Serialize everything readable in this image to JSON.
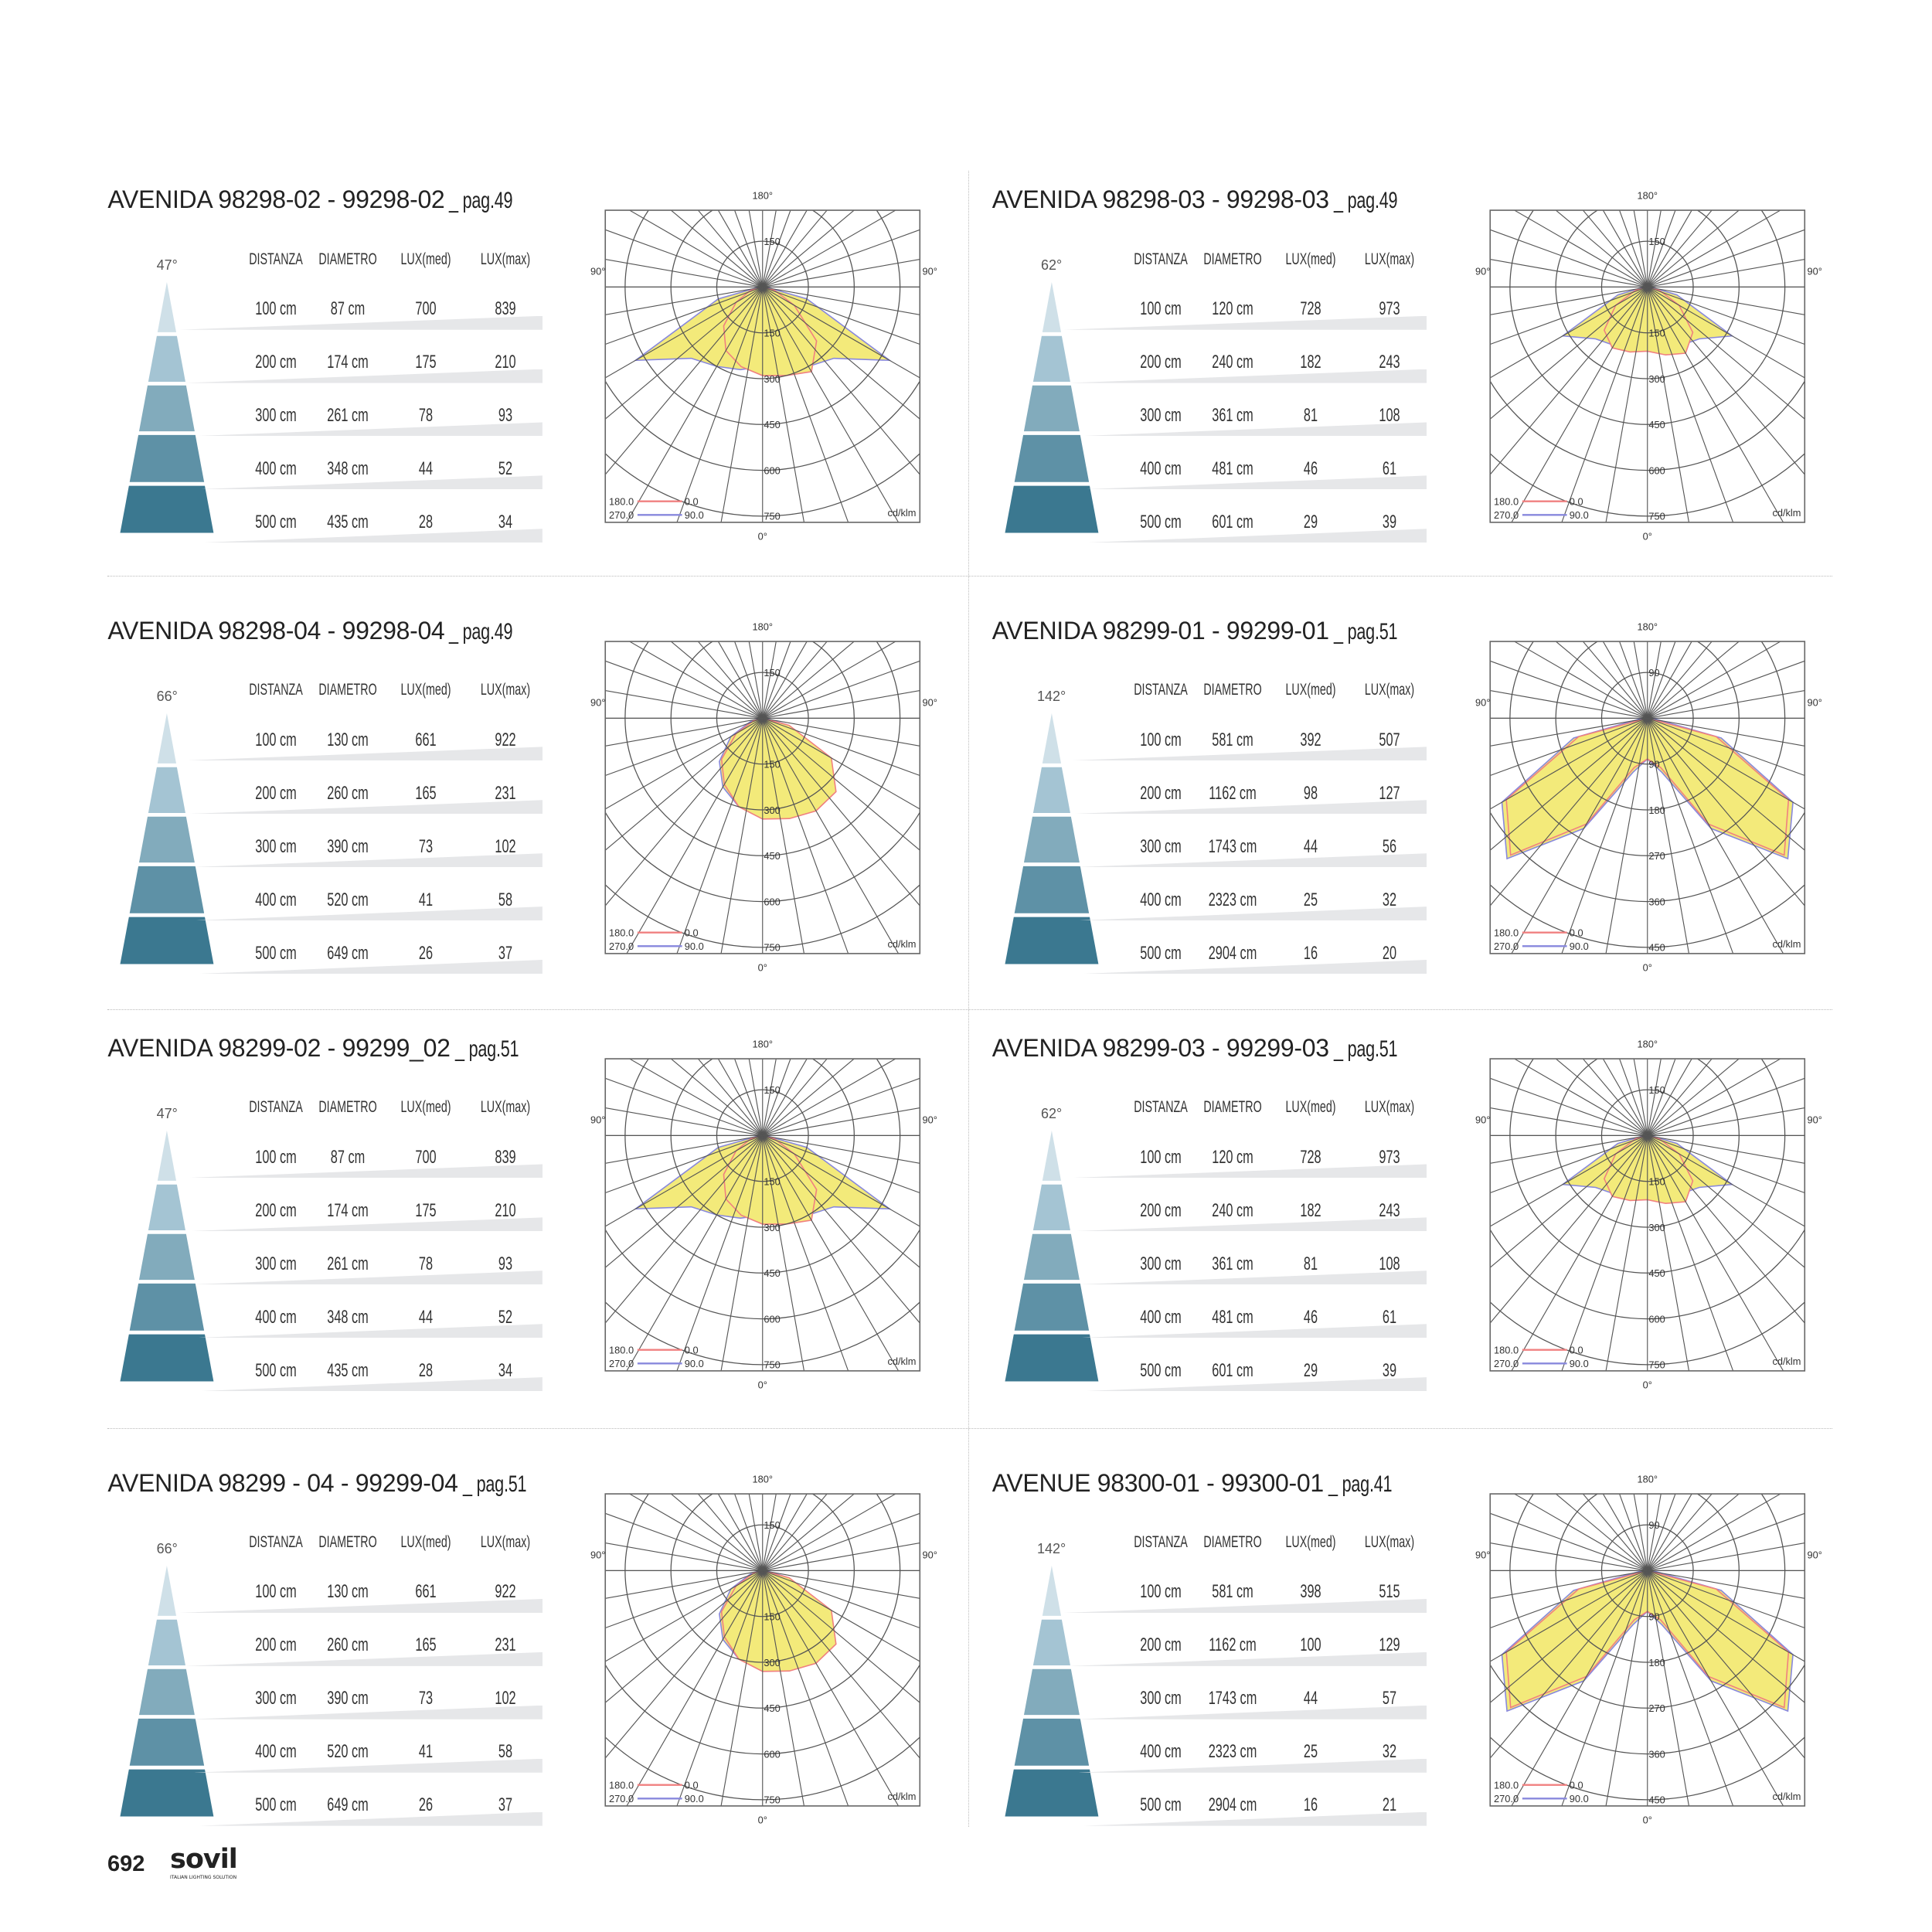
{
  "page_number": "692",
  "logo": {
    "brand": "sovil",
    "tagline": "ITALIAN LIGHTING SOLUTION"
  },
  "table_headers": [
    "DISTANZA",
    "DIAMETRO",
    "LUX(med)",
    "LUX(max)"
  ],
  "chart_labels": {
    "top": "180°",
    "left": "90°",
    "right": "90°",
    "bottom": "0°",
    "unit": "cd/klm",
    "legend": [
      {
        "a": "180.0",
        "b": "0.0",
        "color": "#f08080"
      },
      {
        "a": "270.0",
        "b": "90.0",
        "color": "#8888dd"
      }
    ]
  },
  "colors": {
    "fill": "#f3ea7a",
    "cone": [
      "#cfe0e8",
      "#a4c4d3",
      "#82abbc",
      "#5e91a6",
      "#3b7890"
    ]
  },
  "panels": [
    {
      "title": "AVENIDA 98298-02 - 99298-02",
      "page": "_ pag.49",
      "angle": "47°",
      "rows": [
        [
          "100 cm",
          "87 cm",
          "700",
          "839"
        ],
        [
          "200 cm",
          "174 cm",
          "175",
          "210"
        ],
        [
          "300 cm",
          "261 cm",
          "78",
          "93"
        ],
        [
          "400 cm",
          "348 cm",
          "44",
          "52"
        ],
        [
          "500 cm",
          "435 cm",
          "28",
          "34"
        ]
      ],
      "chart_data": {
        "type": "polar",
        "rings": [
          "150",
          "300",
          "450",
          "600",
          "750"
        ],
        "ring_step": 150,
        "angles_deg": [
          -90,
          -75,
          -60,
          -45,
          -30,
          -15,
          0,
          15,
          30,
          45,
          60,
          75,
          90
        ],
        "series": [
          {
            "name": "C90-270",
            "values": [
              10,
              150,
              480,
              330,
              300,
              280,
              260,
              280,
              300,
              330,
              480,
              150,
              10
            ]
          },
          {
            "name": "C0-180",
            "values": [
              0,
              40,
              100,
              180,
              240,
              270,
              290,
              300,
              320,
              250,
              120,
              40,
              0
            ]
          }
        ]
      }
    },
    {
      "title": "AVENIDA 98298-03 - 99298-03",
      "page": "_ pag.49",
      "angle": "62°",
      "rows": [
        [
          "100 cm",
          "120 cm",
          "728",
          "973"
        ],
        [
          "200 cm",
          "240 cm",
          "182",
          "243"
        ],
        [
          "300 cm",
          "361 cm",
          "81",
          "108"
        ],
        [
          "400 cm",
          "481 cm",
          "46",
          "61"
        ],
        [
          "500 cm",
          "601 cm",
          "29",
          "39"
        ]
      ],
      "chart_data": {
        "type": "polar",
        "rings": [
          "150",
          "300",
          "450",
          "600",
          "750"
        ],
        "ring_step": 150,
        "angles_deg": [
          -90,
          -75,
          -60,
          -45,
          -30,
          -15,
          0,
          15,
          30,
          45,
          60,
          75,
          90
        ],
        "series": [
          {
            "name": "C90-270",
            "values": [
              10,
              100,
              320,
              240,
              220,
              210,
              200,
              210,
              220,
              240,
              320,
              100,
              10
            ]
          },
          {
            "name": "C0-180",
            "values": [
              0,
              40,
              120,
              200,
              230,
              220,
              210,
              230,
              250,
              210,
              120,
              40,
              0
            ]
          }
        ]
      }
    },
    {
      "title": "AVENIDA 98298-04 - 99298-04",
      "page": "_ pag.49",
      "angle": "66°",
      "rows": [
        [
          "100 cm",
          "130 cm",
          "661",
          "922"
        ],
        [
          "200 cm",
          "260 cm",
          "165",
          "231"
        ],
        [
          "300 cm",
          "390 cm",
          "73",
          "102"
        ],
        [
          "400 cm",
          "520 cm",
          "41",
          "58"
        ],
        [
          "500 cm",
          "649 cm",
          "26",
          "37"
        ]
      ],
      "chart_data": {
        "type": "polar",
        "rings": [
          "150",
          "300",
          "450",
          "600",
          "750"
        ],
        "ring_step": 150,
        "angles_deg": [
          -90,
          -75,
          -60,
          -45,
          -30,
          -15,
          0,
          15,
          30,
          45,
          60,
          75,
          90
        ],
        "series": [
          {
            "name": "C90-270",
            "values": [
              10,
              40,
              120,
              200,
              260,
              300,
              320,
              330,
              340,
              330,
              250,
              80,
              10
            ]
          },
          {
            "name": "C0-180",
            "values": [
              0,
              30,
              100,
              190,
              250,
              300,
              330,
              340,
              350,
              340,
              260,
              90,
              0
            ]
          }
        ]
      }
    },
    {
      "title": "AVENIDA 98299-01 - 99299-01",
      "page": "_ pag.51",
      "angle": "142°",
      "rows": [
        [
          "100 cm",
          "581 cm",
          "392",
          "507"
        ],
        [
          "200 cm",
          "1162 cm",
          "98",
          "127"
        ],
        [
          "300 cm",
          "1743 cm",
          "44",
          "56"
        ],
        [
          "400 cm",
          "2323 cm",
          "25",
          "32"
        ],
        [
          "500 cm",
          "2904 cm",
          "16",
          "20"
        ]
      ],
      "chart_data": {
        "type": "polar",
        "rings": [
          "90",
          "180",
          "270",
          "360",
          "450"
        ],
        "ring_step": 90,
        "angles_deg": [
          -90,
          -75,
          -60,
          -45,
          -30,
          -15,
          0,
          15,
          30,
          45,
          60,
          75,
          90
        ],
        "series": [
          {
            "name": "C90-270",
            "values": [
              10,
              150,
              330,
              390,
              250,
              110,
              80,
              110,
              250,
              390,
              330,
              150,
              10
            ]
          },
          {
            "name": "C0-180",
            "values": [
              0,
              140,
              320,
              380,
              240,
              100,
              80,
              100,
              240,
              380,
              320,
              140,
              0
            ]
          }
        ]
      }
    },
    {
      "title": "AVENIDA 98299-02 - 99299_02",
      "page": "_ pag.51",
      "angle": "47°",
      "rows": [
        [
          "100 cm",
          "87 cm",
          "700",
          "839"
        ],
        [
          "200 cm",
          "174 cm",
          "175",
          "210"
        ],
        [
          "300 cm",
          "261 cm",
          "78",
          "93"
        ],
        [
          "400 cm",
          "348 cm",
          "44",
          "52"
        ],
        [
          "500 cm",
          "435 cm",
          "28",
          "34"
        ]
      ],
      "chart_data": {
        "type": "polar",
        "rings": [
          "150",
          "300",
          "450",
          "600",
          "750"
        ],
        "ring_step": 150,
        "angles_deg": [
          -90,
          -75,
          -60,
          -45,
          -30,
          -15,
          0,
          15,
          30,
          45,
          60,
          75,
          90
        ],
        "series": [
          {
            "name": "C90-270",
            "values": [
              10,
              150,
              480,
              330,
              300,
              280,
              260,
              280,
              300,
              330,
              480,
              150,
              10
            ]
          },
          {
            "name": "C0-180",
            "values": [
              0,
              40,
              100,
              180,
              240,
              270,
              290,
              300,
              320,
              250,
              120,
              40,
              0
            ]
          }
        ]
      }
    },
    {
      "title": "AVENIDA 98299-03 - 99299-03",
      "page": "_ pag.51",
      "angle": "62°",
      "rows": [
        [
          "100 cm",
          "120 cm",
          "728",
          "973"
        ],
        [
          "200 cm",
          "240 cm",
          "182",
          "243"
        ],
        [
          "300 cm",
          "361 cm",
          "81",
          "108"
        ],
        [
          "400 cm",
          "481 cm",
          "46",
          "61"
        ],
        [
          "500 cm",
          "601 cm",
          "29",
          "39"
        ]
      ],
      "chart_data": {
        "type": "polar",
        "rings": [
          "150",
          "300",
          "450",
          "600",
          "750"
        ],
        "ring_step": 150,
        "angles_deg": [
          -90,
          -75,
          -60,
          -45,
          -30,
          -15,
          0,
          15,
          30,
          45,
          60,
          75,
          90
        ],
        "series": [
          {
            "name": "C90-270",
            "values": [
              10,
              100,
              320,
              240,
              220,
              210,
              200,
              210,
              220,
              240,
              320,
              100,
              10
            ]
          },
          {
            "name": "C0-180",
            "values": [
              0,
              40,
              120,
              200,
              230,
              220,
              210,
              230,
              250,
              210,
              120,
              40,
              0
            ]
          }
        ]
      }
    },
    {
      "title": "AVENIDA 98299 - 04 - 99299-04",
      "page": "_ pag.51",
      "angle": "66°",
      "rows": [
        [
          "100 cm",
          "130 cm",
          "661",
          "922"
        ],
        [
          "200 cm",
          "260 cm",
          "165",
          "231"
        ],
        [
          "300 cm",
          "390 cm",
          "73",
          "102"
        ],
        [
          "400 cm",
          "520 cm",
          "41",
          "58"
        ],
        [
          "500 cm",
          "649 cm",
          "26",
          "37"
        ]
      ],
      "chart_data": {
        "type": "polar",
        "rings": [
          "150",
          "300",
          "450",
          "600",
          "750"
        ],
        "ring_step": 150,
        "angles_deg": [
          -90,
          -75,
          -60,
          -45,
          -30,
          -15,
          0,
          15,
          30,
          45,
          60,
          75,
          90
        ],
        "series": [
          {
            "name": "C90-270",
            "values": [
              10,
              40,
              120,
              200,
              260,
              300,
              320,
              330,
              340,
              330,
              250,
              80,
              10
            ]
          },
          {
            "name": "C0-180",
            "values": [
              0,
              30,
              100,
              190,
              250,
              300,
              330,
              340,
              350,
              340,
              260,
              90,
              0
            ]
          }
        ]
      }
    },
    {
      "title": "AVENUE 98300-01 - 99300-01",
      "page": "_ pag.41",
      "angle": "142°",
      "rows": [
        [
          "100 cm",
          "581 cm",
          "398",
          "515"
        ],
        [
          "200 cm",
          "1162 cm",
          "100",
          "129"
        ],
        [
          "300 cm",
          "1743 cm",
          "44",
          "57"
        ],
        [
          "400 cm",
          "2323 cm",
          "25",
          "32"
        ],
        [
          "500 cm",
          "2904 cm",
          "16",
          "21"
        ]
      ],
      "chart_data": {
        "type": "polar",
        "rings": [
          "90",
          "180",
          "270",
          "360",
          "450"
        ],
        "ring_step": 90,
        "angles_deg": [
          -90,
          -75,
          -60,
          -45,
          -30,
          -15,
          0,
          15,
          30,
          45,
          60,
          75,
          90
        ],
        "series": [
          {
            "name": "C90-270",
            "values": [
              10,
              150,
              330,
              390,
              250,
              110,
              80,
              110,
              250,
              390,
              330,
              150,
              10
            ]
          },
          {
            "name": "C0-180",
            "values": [
              0,
              140,
              320,
              380,
              240,
              100,
              80,
              100,
              240,
              380,
              320,
              140,
              0
            ]
          }
        ]
      }
    }
  ]
}
